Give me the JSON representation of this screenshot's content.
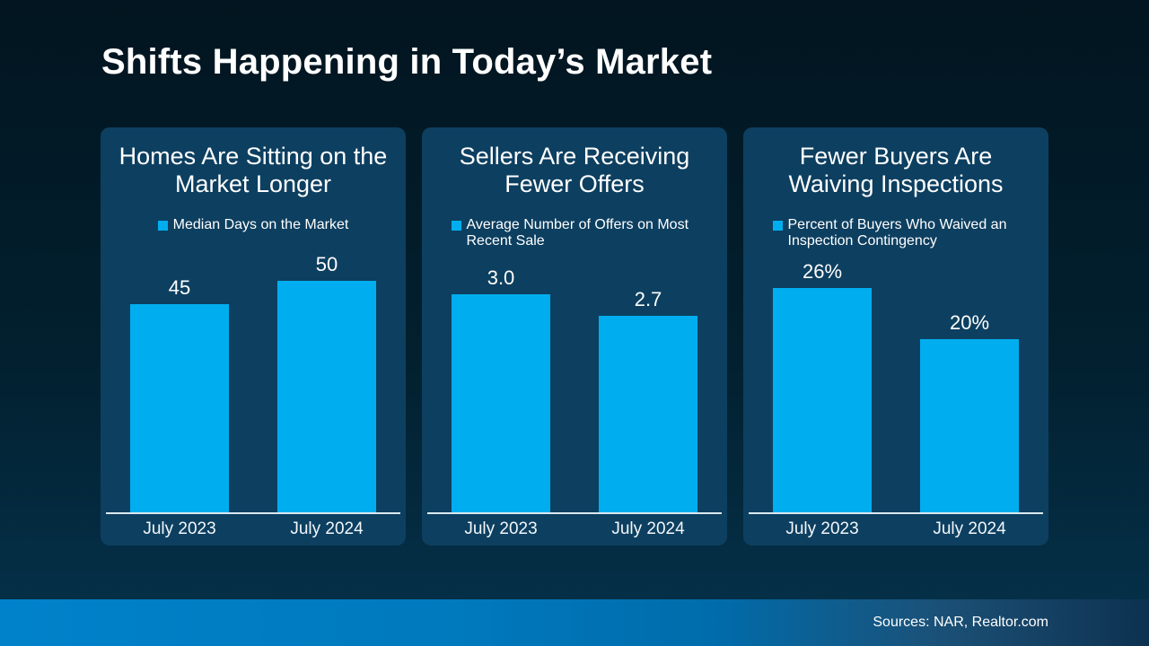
{
  "slide": {
    "title": "Shifts Happening in Today’s Market",
    "source_note": "Sources: NAR, Realtor.com"
  },
  "colors": {
    "accent_bar": "#00aeef",
    "card_background": "#0d3f60",
    "slide_background_top": "#021520",
    "slide_background_bottom": "#05324c",
    "footer_gradient_left": "#0082ca",
    "footer_gradient_right": "#0d3150",
    "text": "#ffffff"
  },
  "chart_data": [
    {
      "type": "bar",
      "title": "Homes Are Sitting on the Market Longer",
      "legend": "Median Days on the Market",
      "categories": [
        "July 2023",
        "July 2024"
      ],
      "values": [
        45,
        50
      ],
      "labels": [
        "45",
        "50"
      ],
      "ylim": [
        0,
        55
      ],
      "grid": false,
      "legend_position": "top-center"
    },
    {
      "type": "bar",
      "title": "Sellers Are Receiving Fewer Offers",
      "legend": "Average Number of Offers on Most Recent Sale",
      "categories": [
        "July 2023",
        "July 2024"
      ],
      "values": [
        3.0,
        2.7
      ],
      "labels": [
        "3.0",
        "2.7"
      ],
      "ylim": [
        0,
        3.5
      ],
      "grid": false,
      "legend_position": "top-center"
    },
    {
      "type": "bar",
      "title": "Fewer Buyers Are Waiving Inspections",
      "legend": "Percent of Buyers Who Waived an Inspection Contingency",
      "categories": [
        "July 2023",
        "July 2024"
      ],
      "values": [
        26,
        20
      ],
      "labels": [
        "26%",
        "20%"
      ],
      "ylim": [
        0,
        29.5
      ],
      "grid": false,
      "legend_position": "top-center"
    }
  ]
}
